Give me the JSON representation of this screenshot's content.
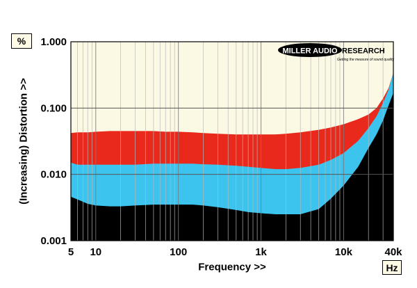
{
  "chart_data": {
    "type": "area",
    "ylabel": "(Increasing) Distortion >>",
    "xlabel": "Frequency >>",
    "x_unit": "Hz",
    "y_unit": "%",
    "x_scale": "log",
    "y_scale": "log",
    "xlim": [
      5,
      40000
    ],
    "ylim": [
      0.001,
      1.0
    ],
    "x_ticks": [
      {
        "value": 5,
        "label": "5"
      },
      {
        "value": 10,
        "label": "10"
      },
      {
        "value": 100,
        "label": "100"
      },
      {
        "value": 1000,
        "label": "1k"
      },
      {
        "value": 10000,
        "label": "10k"
      },
      {
        "value": 40000,
        "label": "40k"
      }
    ],
    "y_ticks": [
      {
        "value": 1.0,
        "label": "1.000"
      },
      {
        "value": 0.1,
        "label": "0.100"
      },
      {
        "value": 0.01,
        "label": "0.010"
      },
      {
        "value": 0.001,
        "label": "0.001"
      }
    ],
    "grid": true,
    "x": [
      5,
      6,
      8,
      10,
      15,
      20,
      30,
      50,
      70,
      100,
      150,
      200,
      300,
      500,
      700,
      1000,
      1500,
      2000,
      3000,
      5000,
      7000,
      10000,
      15000,
      20000,
      25000,
      30000,
      35000,
      40000
    ],
    "series": [
      {
        "color": "#e8291c",
        "values": [
          0.042,
          0.043,
          0.043,
          0.044,
          0.045,
          0.045,
          0.045,
          0.045,
          0.044,
          0.044,
          0.043,
          0.042,
          0.041,
          0.04,
          0.04,
          0.04,
          0.04,
          0.041,
          0.043,
          0.047,
          0.051,
          0.057,
          0.068,
          0.08,
          0.1,
          0.14,
          0.2,
          0.34
        ]
      },
      {
        "color": "#3cc4ee",
        "values": [
          0.015,
          0.014,
          0.014,
          0.014,
          0.014,
          0.014,
          0.014,
          0.0145,
          0.0145,
          0.0145,
          0.0145,
          0.0142,
          0.014,
          0.0135,
          0.013,
          0.0125,
          0.012,
          0.012,
          0.0125,
          0.014,
          0.0165,
          0.021,
          0.032,
          0.05,
          0.075,
          0.12,
          0.19,
          0.34
        ]
      },
      {
        "color": "#000000",
        "values": [
          0.0046,
          0.0042,
          0.0036,
          0.0034,
          0.0033,
          0.0033,
          0.0034,
          0.0035,
          0.0035,
          0.0035,
          0.0035,
          0.0034,
          0.0032,
          0.0029,
          0.0027,
          0.0026,
          0.0025,
          0.0025,
          0.0025,
          0.003,
          0.0043,
          0.0068,
          0.013,
          0.025,
          0.04,
          0.065,
          0.11,
          0.17
        ]
      }
    ],
    "plot_background": "#fbf8e4",
    "logo": {
      "text_a": "MILLER AUDIO",
      "text_b": "RESEARCH",
      "tagline": "Getting the measure of sound quality"
    }
  }
}
